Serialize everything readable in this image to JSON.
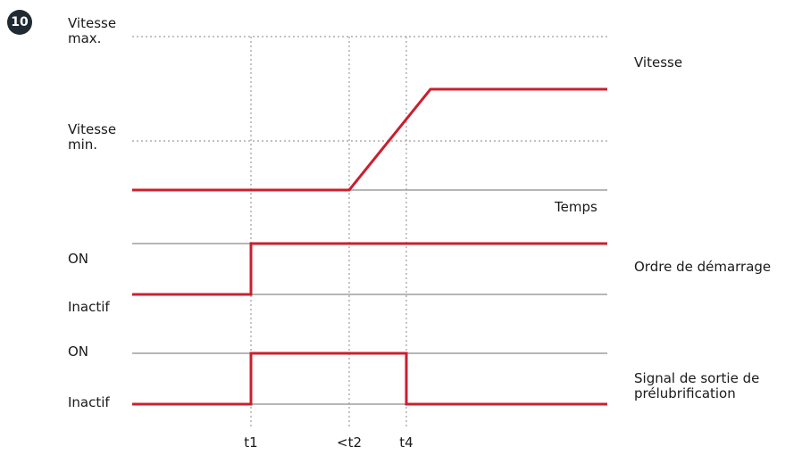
{
  "figure_number": "10",
  "speed_panel": {
    "max_label_line1": "Vitesse",
    "max_label_line2": "max.",
    "min_label_line1": "Vitesse",
    "min_label_line2": "min.",
    "title": "Vitesse",
    "axis_label": "Temps"
  },
  "start_panel": {
    "on_label": "ON",
    "off_label": "Inactif",
    "title": "Ordre de démarrage"
  },
  "prelube_panel": {
    "on_label": "ON",
    "off_label": "Inactif",
    "title_line1": "Signal de sortie de",
    "title_line2": "prélubrification"
  },
  "time_marks": [
    "t1",
    "<t2",
    "t4"
  ],
  "colors": {
    "signal": "#c8202f",
    "baseline": "#9e9e9e",
    "guide": "#9e9e9e",
    "badge": "#1f2a33"
  }
}
